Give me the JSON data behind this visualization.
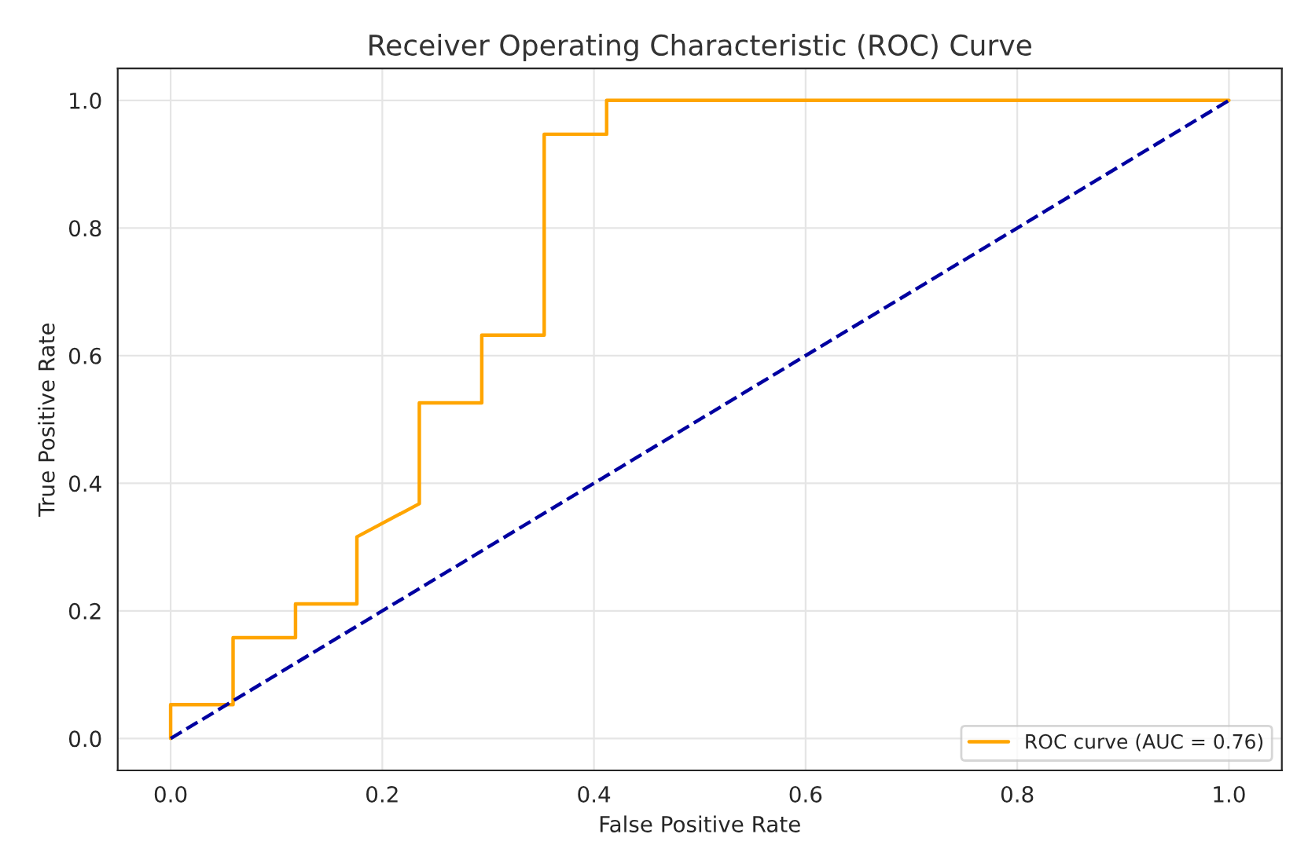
{
  "chart_data": {
    "type": "line",
    "title": "Receiver Operating Characteristic (ROC) Curve",
    "xlabel": "False Positive Rate",
    "ylabel": "True Positive Rate",
    "series": [
      {
        "name": "ROC curve (AUC = 0.76)",
        "color": "#ffa500",
        "line_style": "solid",
        "x": [
          0,
          0,
          0.059,
          0.059,
          0.118,
          0.118,
          0.176,
          0.176,
          0.235,
          0.235,
          0.294,
          0.294,
          0.353,
          0.353,
          0.412,
          0.412,
          1.0
        ],
        "values": [
          0,
          0.053,
          0.053,
          0.158,
          0.158,
          0.211,
          0.211,
          0.316,
          0.368,
          0.526,
          0.526,
          0.632,
          0.632,
          0.947,
          0.947,
          1.0,
          1.0
        ]
      },
      {
        "color": "#0000a0",
        "line_style": "dashed",
        "x": [
          0,
          1
        ],
        "values": [
          0,
          1
        ]
      }
    ],
    "xlim": [
      -0.05,
      1.05
    ],
    "ylim": [
      -0.05,
      1.05
    ],
    "xticks": [
      {
        "value": 0,
        "label": "0.0"
      },
      0.2,
      0.4,
      0.6,
      0.8,
      {
        "value": 1,
        "label": "1.0"
      }
    ],
    "yticks": [
      {
        "value": 0,
        "label": "0.0"
      },
      0.2,
      0.4,
      0.6,
      0.8,
      {
        "value": 1,
        "label": "1.0"
      }
    ],
    "grid": true,
    "legend": "lower right"
  }
}
